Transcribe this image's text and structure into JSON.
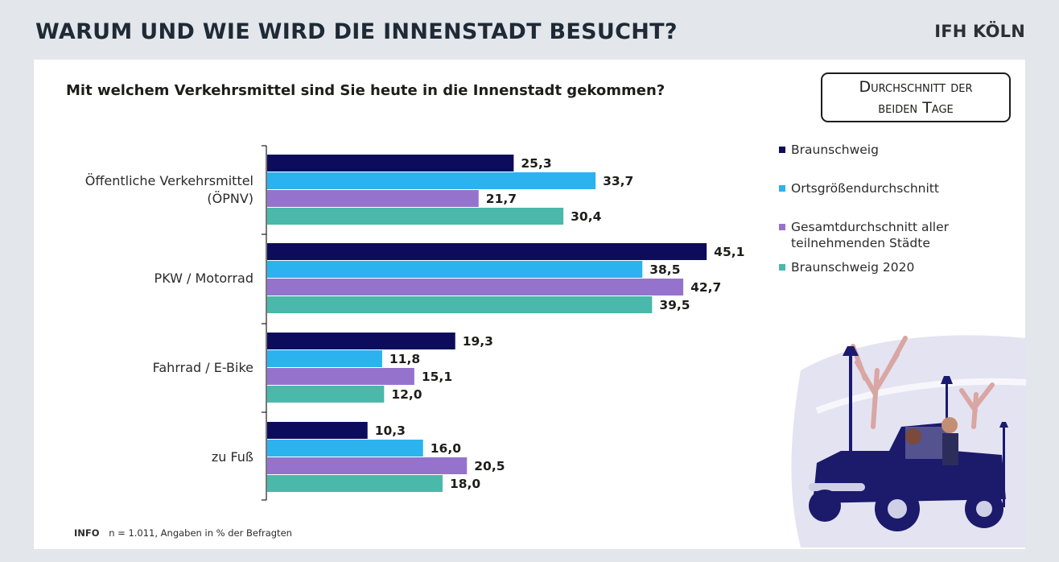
{
  "header": {
    "title": "WARUM UND WIE WIRD DIE INNENSTADT BESUCHT?",
    "brand": "IFH KÖLN"
  },
  "question": "Mit welchem Verkehrsmittel sind Sie heute in die Innenstadt gekommen?",
  "badge": "Durchschnitt der beiden Tage",
  "footer": {
    "info_label": "INFO",
    "info_text": "n = 1.011, Angaben in % der Befragten"
  },
  "illustration": {
    "icon": "car-with-people-and-trees-illustration"
  },
  "chart_data": {
    "type": "bar",
    "orientation": "horizontal",
    "categories": [
      [
        "Öffentliche Verkehrsmittel",
        "(ÖPNV)"
      ],
      [
        "PKW / Motorrad"
      ],
      [
        "Fahrrad / E-Bike"
      ],
      [
        "zu Fuß"
      ]
    ],
    "series": [
      {
        "name": "Braunschweig",
        "color": "#0d0c5c",
        "values": [
          "25,3",
          "45,1",
          "19,3",
          "10,3"
        ]
      },
      {
        "name": "Ortsgrößendurchschnitt",
        "color": "#2cb2ee",
        "values": [
          "33,7",
          "38,5",
          "11,8",
          "16,0"
        ]
      },
      {
        "name": "Gesamtdurchschnitt aller teilnehmenden Städte",
        "color": "#9573cd",
        "values": [
          "21,7",
          "42,7",
          "15,1",
          "20,5"
        ]
      },
      {
        "name": "Braunschweig 2020",
        "color": "#4ab8aa",
        "values": [
          "30,4",
          "39,5",
          "12,0",
          "18,0"
        ]
      }
    ],
    "xlim": [
      0,
      50
    ],
    "grid": false,
    "legend": "right"
  }
}
